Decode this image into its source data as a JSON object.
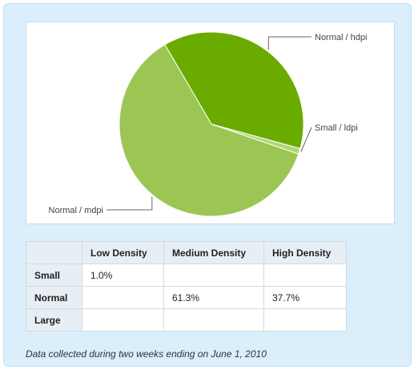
{
  "chart_data": {
    "type": "pie",
    "slices": [
      {
        "label": "Normal / hdpi",
        "value": 37.7,
        "color": "#6aab00"
      },
      {
        "label": "Small / ldpi",
        "value": 1.0,
        "color": "#b3d675"
      },
      {
        "label": "Normal / mdpi",
        "value": 61.3,
        "color": "#9bc653"
      }
    ]
  },
  "table": {
    "columns": [
      "",
      "Low Density",
      "Medium Density",
      "High Density"
    ],
    "rows": [
      {
        "label": "Small",
        "cells": [
          "1.0%",
          "",
          ""
        ]
      },
      {
        "label": "Normal",
        "cells": [
          "",
          "61.3%",
          "37.7%"
        ]
      },
      {
        "label": "Large",
        "cells": [
          "",
          "",
          ""
        ]
      }
    ]
  },
  "caption": "Data collected during two weeks ending on June 1, 2010"
}
